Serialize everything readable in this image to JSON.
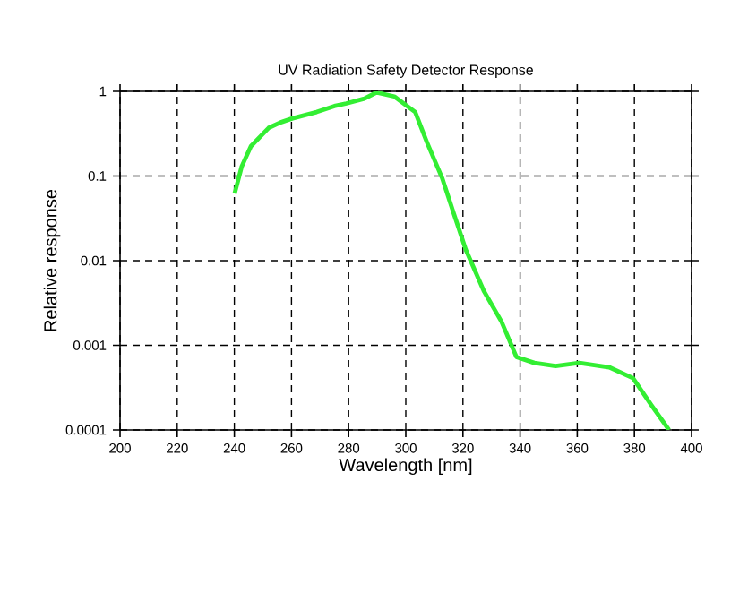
{
  "chart_data": {
    "type": "line",
    "title": "UV Radiation Safety Detector Response",
    "xlabel": "Wavelength [nm]",
    "ylabel": "Relative response",
    "log": "y",
    "grid": true,
    "marker": "none",
    "xlim": [
      200,
      400
    ],
    "xticks": [
      200,
      220,
      240,
      260,
      280,
      300,
      320,
      340,
      360,
      380,
      400
    ],
    "ylim": [
      0.0001,
      1
    ],
    "yticks": [
      {
        "value": 0.0001,
        "label": "0.0001"
      },
      {
        "value": 0.001,
        "label": "0.001"
      },
      {
        "value": 0.01,
        "label": "0.01"
      },
      {
        "value": 0.1,
        "label": "0.1"
      },
      {
        "value": 1,
        "label": "1"
      }
    ],
    "series": [
      {
        "color": "#33ee33",
        "x": [
          240.1,
          242.6,
          245.8,
          252,
          256.2,
          260.4,
          268.8,
          275,
          279.2,
          285.5,
          289.7,
          296,
          303.3,
          307.4,
          312.7,
          316.8,
          321,
          327.3,
          333.5,
          338.7,
          345,
          352.4,
          360.7,
          371.2,
          379.5,
          385.8,
          392.1
        ],
        "values": [
          0.062,
          0.13,
          0.225,
          0.37,
          0.43,
          0.48,
          0.57,
          0.67,
          0.72,
          0.82,
          0.97,
          0.87,
          0.57,
          0.25,
          0.095,
          0.036,
          0.0135,
          0.0044,
          0.0019,
          0.00073,
          0.00062,
          0.00057,
          0.00062,
          0.00055,
          0.00041,
          0.0002,
          0.0001
        ]
      }
    ]
  }
}
